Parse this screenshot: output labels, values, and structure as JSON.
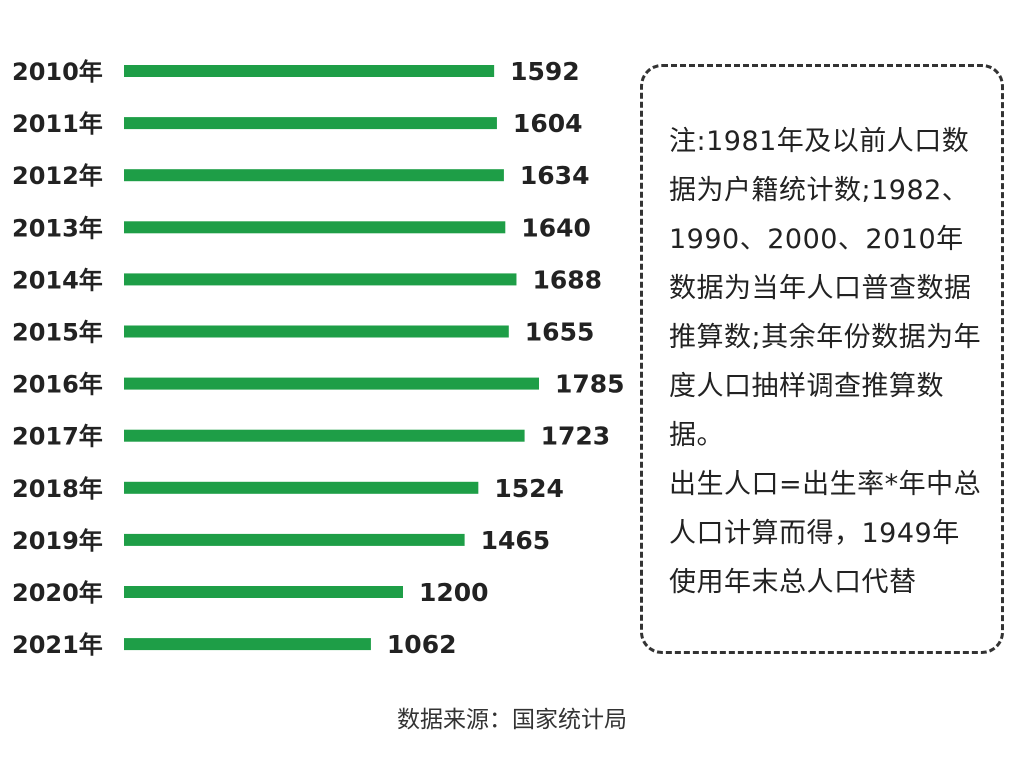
{
  "chart_data": {
    "type": "bar",
    "orientation": "horizontal",
    "categories": [
      "2010年",
      "2011年",
      "2012年",
      "2013年",
      "2014年",
      "2015年",
      "2016年",
      "2017年",
      "2018年",
      "2019年",
      "2020年",
      "2021年"
    ],
    "values": [
      1592,
      1604,
      1634,
      1640,
      1688,
      1655,
      1785,
      1723,
      1524,
      1465,
      1200,
      1062
    ],
    "value_labels": [
      "1592",
      "1604",
      "1634",
      "1640",
      "1688",
      "1655",
      "1785",
      "1723",
      "1524",
      "1465",
      "1200",
      "1062"
    ],
    "bar_color": "#1e9e47",
    "xlim": [
      0,
      1785
    ],
    "grid": false,
    "legend": "none"
  },
  "note": {
    "paragraph_1": "注:1981年及以前人口数据为户籍统计数;1982、1990、2000、2010年数据为当年人口普查数据推算数;其余年份数据为年度人口抽样调查推算数据。",
    "paragraph_2": "出生人口=出生率*年中总人口计算而得，1949年使用年末总人口代替"
  },
  "source": "数据来源：国家统计局"
}
